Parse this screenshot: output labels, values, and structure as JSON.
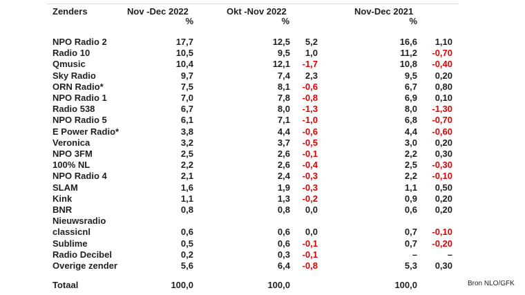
{
  "headers": {
    "station": "Zenders",
    "nov_dec_2022": "Nov -Dec 2022",
    "okt_nov_2022": "Okt -Nov 2022",
    "nov_dec_2021": "Nov-Dec 2021",
    "percent": "%"
  },
  "rows": [
    {
      "name": "NPO Radio 2",
      "nd22": "17,7",
      "on22": "12,5",
      "d1": "5,2",
      "d1neg": false,
      "nd21": "16,6",
      "d2": "1,10",
      "d2neg": false
    },
    {
      "name": "Radio 10",
      "nd22": "10,5",
      "on22": "9,5",
      "d1": "1,0",
      "d1neg": false,
      "nd21": "11,2",
      "d2": "-0,70",
      "d2neg": true
    },
    {
      "name": "Qmusic",
      "nd22": "10,4",
      "on22": "12,1",
      "d1": "-1,7",
      "d1neg": true,
      "nd21": "10,8",
      "d2": "-0,40",
      "d2neg": true
    },
    {
      "name": "Sky Radio",
      "nd22": "9,7",
      "on22": "7,4",
      "d1": "2,3",
      "d1neg": false,
      "nd21": "9,5",
      "d2": "0,20",
      "d2neg": false
    },
    {
      "name": "ORN Radio*",
      "nd22": "7,5",
      "on22": "8,1",
      "d1": "-0,6",
      "d1neg": true,
      "nd21": "6,7",
      "d2": "0,80",
      "d2neg": false
    },
    {
      "name": "NPO Radio 1",
      "nd22": "7,0",
      "on22": "7,8",
      "d1": "-0,8",
      "d1neg": true,
      "nd21": "6,9",
      "d2": "0,10",
      "d2neg": false
    },
    {
      "name": "Radio 538",
      "nd22": "6,7",
      "on22": "8,0",
      "d1": "-1,3",
      "d1neg": true,
      "nd21": "8,0",
      "d2": "-1,30",
      "d2neg": true
    },
    {
      "name": "NPO Radio 5",
      "nd22": "6,1",
      "on22": "7,1",
      "d1": "-1,0",
      "d1neg": true,
      "nd21": "6,8",
      "d2": "-0,70",
      "d2neg": true
    },
    {
      "name": "E Power Radio*",
      "nd22": "3,8",
      "on22": "4,4",
      "d1": "-0,6",
      "d1neg": true,
      "nd21": "4,4",
      "d2": "-0,60",
      "d2neg": true
    },
    {
      "name": "Veronica",
      "nd22": "3,2",
      "on22": "3,7",
      "d1": "-0,5",
      "d1neg": true,
      "nd21": "3,0",
      "d2": "0,20",
      "d2neg": false
    },
    {
      "name": "NPO 3FM",
      "nd22": "2,5",
      "on22": "2,6",
      "d1": "-0,1",
      "d1neg": true,
      "nd21": "2,2",
      "d2": "0,30",
      "d2neg": false
    },
    {
      "name": "100% NL",
      "nd22": "2,2",
      "on22": "2,6",
      "d1": "-0,4",
      "d1neg": true,
      "nd21": "2,5",
      "d2": "-0,30",
      "d2neg": true
    },
    {
      "name": "NPO Radio 4",
      "nd22": "2,1",
      "on22": "2,4",
      "d1": "-0,3",
      "d1neg": true,
      "nd21": "2,2",
      "d2": "-0,10",
      "d2neg": true
    },
    {
      "name": "SLAM",
      "nd22": "1,6",
      "on22": "1,9",
      "d1": "-0,3",
      "d1neg": true,
      "nd21": "1,1",
      "d2": "0,50",
      "d2neg": false
    },
    {
      "name": "Kink",
      "nd22": "1,1",
      "on22": "1,3",
      "d1": "-0,2",
      "d1neg": true,
      "nd21": "0,9",
      "d2": "0,20",
      "d2neg": false
    },
    {
      "name": "BNR",
      "nd22": "0,8",
      "on22": "0,8",
      "d1": "0,0",
      "d1neg": false,
      "nd21": "0,6",
      "d2": "0,20",
      "d2neg": false
    },
    {
      "name": "Nieuwsradio",
      "nd22": "",
      "on22": "",
      "d1": "",
      "d1neg": false,
      "nd21": "",
      "d2": "",
      "d2neg": false
    },
    {
      "name": "classicnl",
      "nd22": "0,6",
      "on22": "0,6",
      "d1": "0,0",
      "d1neg": false,
      "nd21": "0,7",
      "d2": "-0,10",
      "d2neg": true
    },
    {
      "name": "Sublime",
      "nd22": "0,5",
      "on22": "0,6",
      "d1": "-0,1",
      "d1neg": true,
      "nd21": "0,7",
      "d2": "-0,20",
      "d2neg": true
    },
    {
      "name": "Radio Decibel",
      "nd22": "0,2",
      "on22": "0,3",
      "d1": "-0,1",
      "d1neg": true,
      "nd21": "–",
      "d2": "–",
      "d2neg": false
    },
    {
      "name": "Overige zender",
      "nd22": "5,6",
      "on22": "6,4",
      "d1": "-0,8",
      "d1neg": true,
      "nd21": "5,3",
      "d2": "0,30",
      "d2neg": false
    }
  ],
  "total": {
    "name": "Totaal",
    "nd22": "100,0",
    "on22": "100,0",
    "nd21": "100,0"
  },
  "source": "Bron NLO/GFK",
  "colors": {
    "text": "#1f1f1f",
    "negative": "#e00000"
  }
}
